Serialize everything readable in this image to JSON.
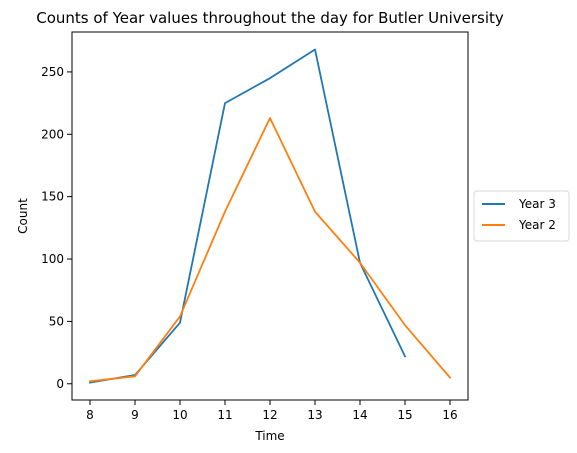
{
  "chart_data": {
    "type": "line",
    "title": "Counts of Year values throughout the day for Butler University",
    "xlabel": "Time",
    "ylabel": "Count",
    "xlim": [
      7.6,
      16.4
    ],
    "ylim": [
      -13,
      282
    ],
    "xticks": [
      8,
      9,
      10,
      11,
      12,
      13,
      14,
      15,
      16
    ],
    "yticks": [
      0,
      50,
      100,
      150,
      200,
      250
    ],
    "grid": false,
    "legend": {
      "placement": "right",
      "entries": [
        "Year 3",
        "Year 2"
      ]
    },
    "series": [
      {
        "name": "Year 3",
        "color": "#1f77b4",
        "x": [
          8,
          9,
          10,
          11,
          12,
          13,
          14,
          15
        ],
        "y": [
          1,
          7,
          49,
          225,
          245,
          268,
          97,
          22
        ]
      },
      {
        "name": "Year 2",
        "color": "#ff7f0e",
        "x": [
          8,
          9,
          10,
          11,
          12,
          13,
          14,
          15,
          16
        ],
        "y": [
          2,
          6,
          54,
          138,
          213,
          138,
          97,
          47,
          5
        ]
      }
    ]
  }
}
